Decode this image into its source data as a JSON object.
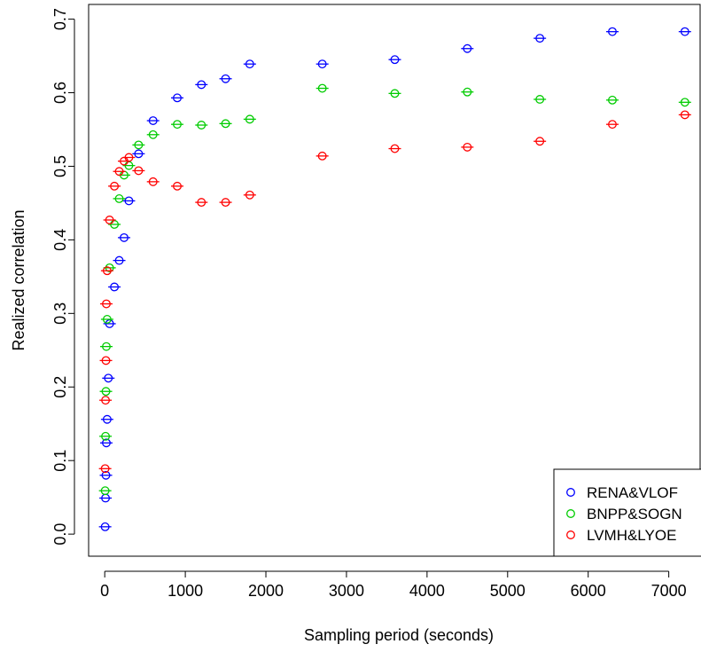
{
  "chart_data": {
    "type": "scatter",
    "xlabel": "Sampling period (seconds)",
    "ylabel": "Realized correlation",
    "xlim": [
      -200,
      7400
    ],
    "ylim": [
      -0.03,
      0.72
    ],
    "xticks": [
      0,
      1000,
      2000,
      3000,
      4000,
      5000,
      6000,
      7000
    ],
    "xtick_labels": [
      "0",
      "1000",
      "2000",
      "3000",
      "4000",
      "5000",
      "6000",
      "7000"
    ],
    "yticks": [
      0.0,
      0.1,
      0.2,
      0.3,
      0.4,
      0.5,
      0.6,
      0.7
    ],
    "ytick_labels": [
      "0.0",
      "0.1",
      "0.2",
      "0.3",
      "0.4",
      "0.5",
      "0.6",
      "0.7"
    ],
    "legend_position": "bottom-right",
    "grid": false,
    "series": [
      {
        "name": "RENA&VLOF",
        "color": "#0000ff",
        "x": [
          5,
          10,
          15,
          20,
          30,
          45,
          60,
          120,
          180,
          240,
          300,
          420,
          600,
          900,
          1200,
          1500,
          1800,
          2700,
          3600,
          4500,
          5400,
          6300,
          7200
        ],
        "y": [
          0.01,
          0.049,
          0.08,
          0.124,
          0.156,
          0.212,
          0.286,
          0.336,
          0.372,
          0.403,
          0.453,
          0.517,
          0.562,
          0.593,
          0.611,
          0.619,
          0.639,
          0.639,
          0.645,
          0.66,
          0.674,
          0.683,
          0.683
        ]
      },
      {
        "name": "BNPP&SOGN",
        "color": "#00cc00",
        "x": [
          5,
          10,
          15,
          20,
          30,
          60,
          120,
          180,
          240,
          300,
          420,
          600,
          900,
          1200,
          1500,
          1800,
          2700,
          3600,
          4500,
          5400,
          6300,
          7200
        ],
        "y": [
          0.059,
          0.133,
          0.194,
          0.255,
          0.292,
          0.362,
          0.421,
          0.456,
          0.488,
          0.501,
          0.529,
          0.543,
          0.557,
          0.556,
          0.558,
          0.564,
          0.606,
          0.599,
          0.601,
          0.591,
          0.59,
          0.587
        ]
      },
      {
        "name": "LVMH&LYOE",
        "color": "#ff0000",
        "x": [
          5,
          10,
          15,
          20,
          30,
          60,
          120,
          180,
          240,
          300,
          420,
          600,
          900,
          1200,
          1500,
          1800,
          2700,
          3600,
          4500,
          5400,
          6300,
          7200
        ],
        "y": [
          0.089,
          0.182,
          0.236,
          0.313,
          0.358,
          0.427,
          0.473,
          0.493,
          0.507,
          0.512,
          0.494,
          0.479,
          0.473,
          0.451,
          0.451,
          0.461,
          0.514,
          0.524,
          0.526,
          0.534,
          0.557,
          0.57
        ]
      }
    ]
  }
}
